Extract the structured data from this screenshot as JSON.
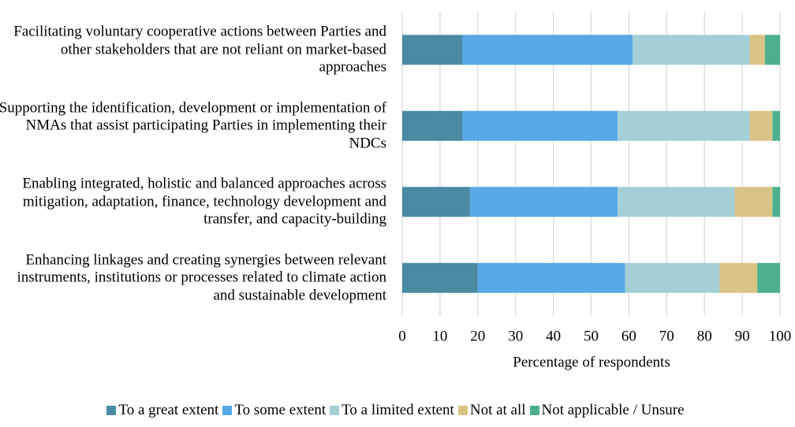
{
  "chart_data": {
    "type": "stacked-barh",
    "categories": [
      "Facilitating voluntary cooperative actions between Parties and other stakeholders that are not reliant on market-based approaches",
      "Supporting the identification, development or implementation of NMAs that assist participating Parties in implementing their NDCs",
      "Enabling integrated, holistic and balanced approaches across mitigation, adaptation, finance, technology development and transfer, and capacity-building",
      "Enhancing linkages and creating synergies between relevant instruments, institutions or processes related to climate action and sustainable development"
    ],
    "series": [
      {
        "name": "To a great extent",
        "color": "#4a8aa3",
        "values": [
          16,
          16,
          18,
          20
        ]
      },
      {
        "name": "To some extent",
        "color": "#56a9e6",
        "values": [
          45,
          41,
          39,
          39
        ]
      },
      {
        "name": "To a limited extent",
        "color": "#a5cfd6",
        "values": [
          31,
          35,
          31,
          25
        ]
      },
      {
        "name": "Not at all",
        "color": "#d9c486",
        "values": [
          4,
          6,
          10,
          10
        ]
      },
      {
        "name": "Not applicable / Unsure",
        "color": "#4caf8f",
        "values": [
          4,
          2,
          2,
          6
        ]
      }
    ],
    "x_label": "Percentage of respondents",
    "xlim": [
      0,
      100
    ],
    "xticks": [
      0,
      10,
      20,
      30,
      40,
      50,
      60,
      70,
      80,
      90,
      100
    ],
    "grid": true,
    "legend": "bottom"
  }
}
